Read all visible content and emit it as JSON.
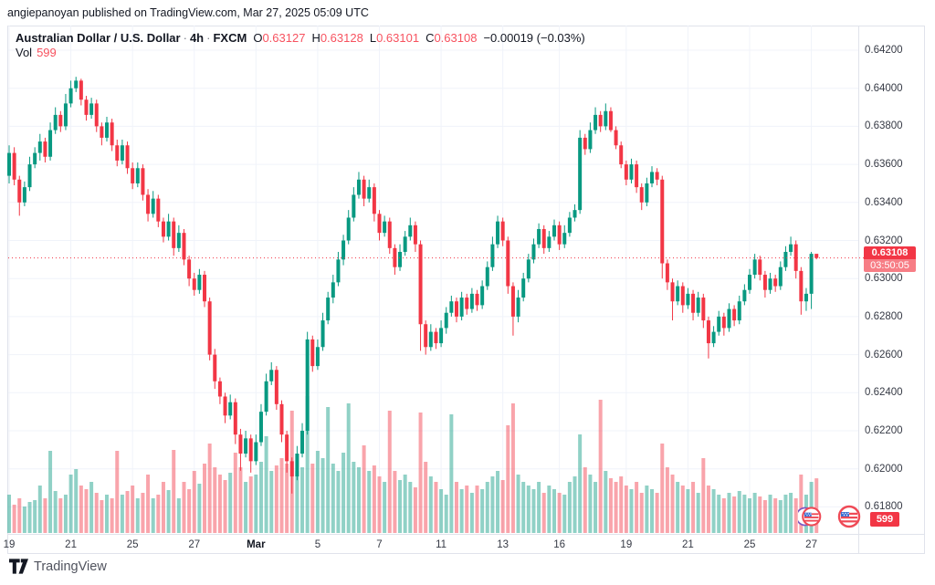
{
  "attribution": "angiepanoyan published on TradingView.com, Mar 27, 2025 05:09 UTC",
  "legend": {
    "separator": "·",
    "ohlc": [
      {
        "label": "O",
        "value": "0.63127"
      },
      {
        "label": "H",
        "value": "0.63128"
      },
      {
        "label": "L",
        "value": "0.63101"
      },
      {
        "label": "C",
        "value": "0.63108"
      }
    ],
    "change": "−0.00019 (−0.03%)",
    "vol_label": "Vol",
    "vol_value": "599"
  },
  "badges": {
    "last_price": "0.63108",
    "countdown": "03:50:05",
    "volume": "599"
  },
  "watermark": {
    "brand": "TradingView"
  },
  "colors": {
    "up": "#089981",
    "down": "#f23645",
    "volume_up": "rgba(8,153,129,0.45)",
    "volume_down": "rgba(242,54,69,0.45)",
    "grid": "#f0f3fa",
    "axis_text": "#363a45",
    "price_line": "#f23645",
    "badge_red": "#f23645",
    "countdown_bg": "#f77d85",
    "border": "#e0e3eb"
  },
  "chart_data": {
    "type": "candlestick",
    "title": "Australian Dollar / U.S. Dollar",
    "interval": "4h",
    "exchange": "FXCM",
    "subchart": "volume",
    "ylim": [
      0.6166,
      0.6433
    ],
    "grid": true,
    "last_price": 0.63108,
    "price_axis": {
      "step": 0.002,
      "labels": [
        "0.64200",
        "0.64000",
        "0.63800",
        "0.63600",
        "0.63400",
        "0.63200",
        "0.63000",
        "0.62800",
        "0.62600",
        "0.62400",
        "0.62200",
        "0.62000",
        "0.61800"
      ]
    },
    "time_axis": {
      "labels": [
        {
          "text": "19",
          "idx": 0
        },
        {
          "text": "21",
          "idx": 12
        },
        {
          "text": "25",
          "idx": 24
        },
        {
          "text": "27",
          "idx": 36
        },
        {
          "text": "Mar",
          "idx": 48,
          "bold": true
        },
        {
          "text": "5",
          "idx": 60
        },
        {
          "text": "7",
          "idx": 72
        },
        {
          "text": "11",
          "idx": 84
        },
        {
          "text": "13",
          "idx": 96
        },
        {
          "text": "16",
          "idx": 107
        },
        {
          "text": "19",
          "idx": 120
        },
        {
          "text": "21",
          "idx": 132
        },
        {
          "text": "25",
          "idx": 144
        },
        {
          "text": "27",
          "idx": 156
        }
      ]
    },
    "base": 0.6,
    "unit": 0.0001,
    "first_open": 354,
    "closes": [
      366,
      352,
      340,
      348,
      360,
      366,
      372,
      364,
      378,
      386,
      380,
      392,
      400,
      404,
      394,
      386,
      392,
      380,
      374,
      382,
      370,
      362,
      370,
      358,
      350,
      358,
      344,
      334,
      342,
      330,
      322,
      330,
      316,
      324,
      310,
      300,
      294,
      302,
      288,
      260,
      246,
      238,
      228,
      235,
      218,
      208,
      216,
      204,
      214,
      230,
      246,
      252,
      234,
      218,
      204,
      196,
      208,
      220,
      268,
      254,
      264,
      278,
      290,
      298,
      310,
      320,
      332,
      344,
      352,
      342,
      348,
      334,
      324,
      330,
      316,
      306,
      314,
      322,
      328,
      318,
      276,
      264,
      272,
      266,
      274,
      282,
      288,
      280,
      290,
      284,
      292,
      286,
      296,
      306,
      318,
      330,
      320,
      296,
      280,
      290,
      300,
      310,
      318,
      326,
      316,
      322,
      328,
      318,
      324,
      332,
      336,
      374,
      368,
      378,
      386,
      380,
      388,
      378,
      370,
      360,
      352,
      360,
      348,
      340,
      350,
      356,
      352,
      308,
      298,
      288,
      296,
      286,
      292,
      282,
      290,
      278,
      266,
      272,
      280,
      274,
      284,
      278,
      288,
      294,
      302,
      310,
      302,
      294,
      300,
      296,
      306,
      314,
      318,
      304,
      288,
      292,
      313,
      310.8
    ],
    "highs": [
      370,
      369,
      354,
      351,
      364,
      369,
      376,
      374,
      382,
      390,
      388,
      397,
      404,
      406,
      405,
      396,
      395,
      394,
      382,
      385,
      384,
      373,
      373,
      372,
      361,
      361,
      360,
      347,
      346,
      344,
      332,
      334,
      332,
      328,
      326,
      312,
      303,
      305,
      304,
      290,
      263,
      248,
      240,
      239,
      237,
      221,
      220,
      218,
      218,
      234,
      250,
      256,
      254,
      236,
      220,
      206,
      212,
      224,
      272,
      270,
      268,
      282,
      293,
      302,
      314,
      323,
      336,
      348,
      356,
      354,
      352,
      350,
      336,
      333,
      332,
      318,
      318,
      325,
      332,
      330,
      320,
      278,
      276,
      274,
      278,
      285,
      291,
      290,
      293,
      292,
      295,
      294,
      299,
      309,
      322,
      333,
      332,
      322,
      298,
      294,
      303,
      313,
      321,
      329,
      328,
      325,
      331,
      330,
      328,
      335,
      339,
      378,
      376,
      382,
      390,
      388,
      392,
      390,
      380,
      372,
      362,
      363,
      362,
      350,
      353,
      359,
      358,
      354,
      310,
      300,
      299,
      298,
      295,
      294,
      293,
      292,
      280,
      275,
      283,
      282,
      287,
      286,
      291,
      297,
      305,
      313,
      312,
      304,
      303,
      302,
      309,
      317,
      322,
      320,
      306,
      295,
      314,
      312.8
    ],
    "lows": [
      350,
      349,
      333,
      338,
      346,
      358,
      362,
      361,
      362,
      376,
      377,
      378,
      390,
      398,
      391,
      383,
      384,
      377,
      370,
      372,
      367,
      359,
      360,
      355,
      347,
      348,
      341,
      330,
      332,
      327,
      319,
      320,
      312,
      314,
      307,
      296,
      291,
      292,
      285,
      257,
      242,
      234,
      224,
      226,
      213,
      199,
      206,
      198,
      202,
      212,
      228,
      244,
      231,
      214,
      198,
      187,
      194,
      206,
      218,
      251,
      252,
      262,
      276,
      287,
      296,
      307,
      318,
      330,
      342,
      338,
      340,
      330,
      320,
      322,
      313,
      302,
      304,
      312,
      320,
      314,
      262,
      260,
      262,
      263,
      264,
      271,
      280,
      277,
      278,
      281,
      282,
      283,
      284,
      294,
      304,
      316,
      317,
      292,
      270,
      277,
      288,
      298,
      308,
      316,
      313,
      314,
      320,
      315,
      316,
      322,
      330,
      334,
      365,
      366,
      376,
      377,
      378,
      377,
      368,
      358,
      349,
      350,
      345,
      336,
      338,
      348,
      349,
      300,
      294,
      278,
      286,
      282,
      284,
      278,
      280,
      274,
      258,
      264,
      270,
      270,
      272,
      275,
      276,
      286,
      292,
      300,
      299,
      290,
      292,
      293,
      294,
      304,
      312,
      300,
      281,
      283,
      284,
      310.1
    ],
    "volumes": [
      420,
      310,
      380,
      290,
      340,
      360,
      520,
      380,
      900,
      460,
      380,
      420,
      640,
      700,
      520,
      480,
      560,
      440,
      360,
      420,
      380,
      900,
      420,
      460,
      520,
      380,
      440,
      640,
      380,
      420,
      560,
      470,
      910,
      380,
      560,
      480,
      680,
      540,
      760,
      980,
      720,
      640,
      580,
      660,
      880,
      720,
      560,
      620,
      640,
      780,
      1060,
      680,
      740,
      820,
      760,
      1340,
      680,
      720,
      1500,
      760,
      900,
      820,
      1380,
      760,
      680,
      880,
      1420,
      780,
      720,
      960,
      680,
      740,
      620,
      560,
      1340,
      680,
      580,
      640,
      560,
      500,
      1320,
      780,
      620,
      560,
      480,
      420,
      1300,
      560,
      480,
      520,
      440,
      520,
      480,
      560,
      620,
      680,
      580,
      1180,
      1420,
      640,
      560,
      520,
      480,
      560,
      440,
      520,
      480,
      440,
      420,
      560,
      620,
      1080,
      720,
      640,
      560,
      1460,
      680,
      600,
      560,
      620,
      520,
      480,
      560,
      440,
      520,
      480,
      440,
      980,
      720,
      640,
      560,
      520,
      480,
      560,
      440,
      820,
      520,
      480,
      420,
      380,
      440,
      400,
      460,
      420,
      380,
      440,
      400,
      360,
      420,
      380,
      360,
      420,
      440,
      380,
      640,
      420,
      560,
      599
    ]
  }
}
